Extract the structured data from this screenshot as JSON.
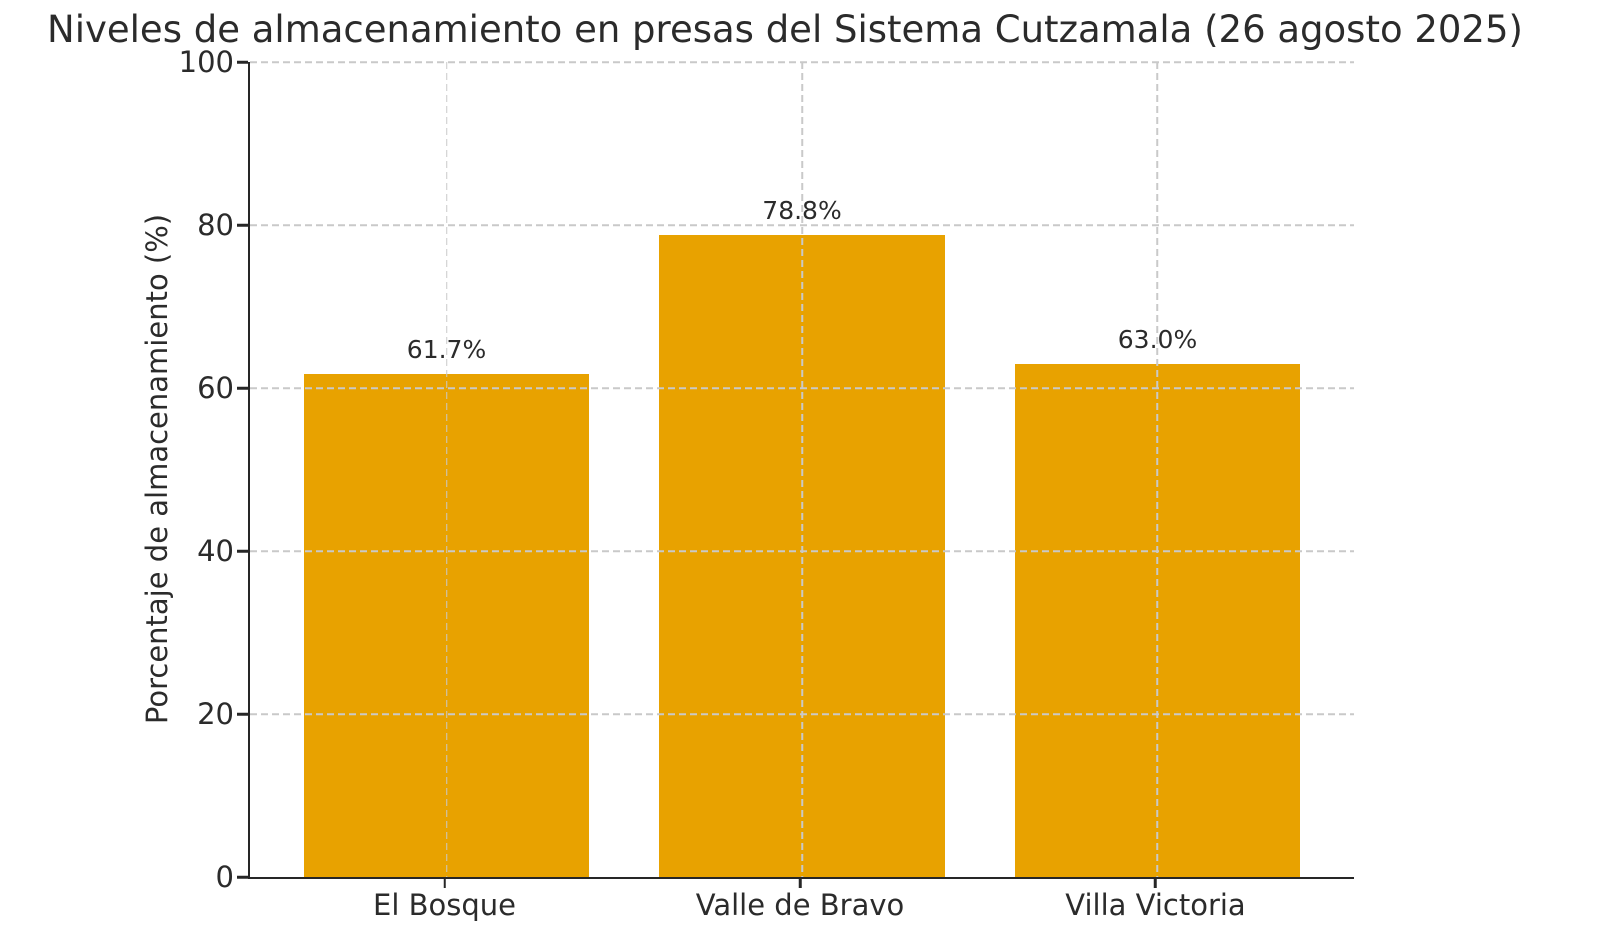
{
  "chart_data": {
    "type": "bar",
    "title": "Niveles de almacenamiento en presas del Sistema Cutzamala (26 agosto 2025)",
    "xlabel": "",
    "ylabel": "Porcentaje de almacenamiento (%)",
    "categories": [
      "El Bosque",
      "Valle de Bravo",
      "Villa Victoria"
    ],
    "values": [
      61.7,
      78.8,
      63.0
    ],
    "value_labels": [
      "61.7%",
      "78.8%",
      "63.0%"
    ],
    "ylim": [
      0,
      100
    ],
    "yticks": [
      0,
      20,
      40,
      60,
      80,
      100
    ],
    "grid": "dashed horizontal lines at y-ticks and dashed vertical lines at category centers, drawn over bars",
    "legend": "none",
    "spines": "left and bottom only",
    "colors": {
      "bar": "#E8A200",
      "grid": "#c9c9c9",
      "spine": "#262626",
      "text": "#2b2b2b",
      "background": "#ffffff"
    },
    "layout": {
      "bar_centers_fraction": [
        0.178,
        0.5,
        0.822
      ],
      "bar_width_fraction": 0.259
    }
  }
}
